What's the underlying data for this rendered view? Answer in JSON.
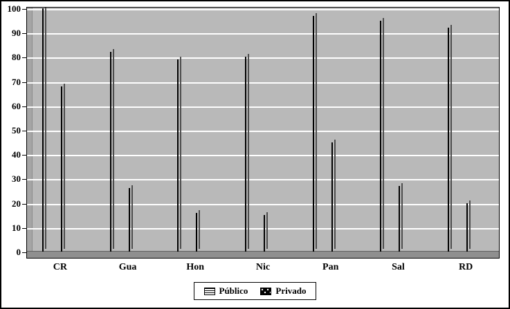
{
  "chart_data": {
    "type": "bar",
    "categories": [
      "CR",
      "Gua",
      "Hon",
      "Nic",
      "Pan",
      "Sal",
      "RD"
    ],
    "series": [
      {
        "name": "Público",
        "values": [
          100,
          82,
          79,
          80,
          97,
          95,
          92
        ]
      },
      {
        "name": "Privado",
        "values": [
          68,
          26,
          16,
          15,
          45,
          27,
          20
        ]
      }
    ],
    "title": "",
    "xlabel": "",
    "ylabel": "",
    "ylim": [
      0,
      100
    ],
    "ytick_step": 10,
    "grid": true,
    "legend_position": "bottom",
    "colors": {
      "plot_bg": "#b9b9b9",
      "gridline": "#ffffff",
      "bar_border": "#000000",
      "bar_shadow": "#4d4d4d",
      "floor": "#8f8f8f"
    },
    "patterns": {
      "Público": "white-with-horizontal-black-stripes",
      "Privado": "black-with-white-dots"
    }
  },
  "legend": {
    "items": [
      {
        "label": "Público"
      },
      {
        "label": "Privado"
      }
    ]
  }
}
